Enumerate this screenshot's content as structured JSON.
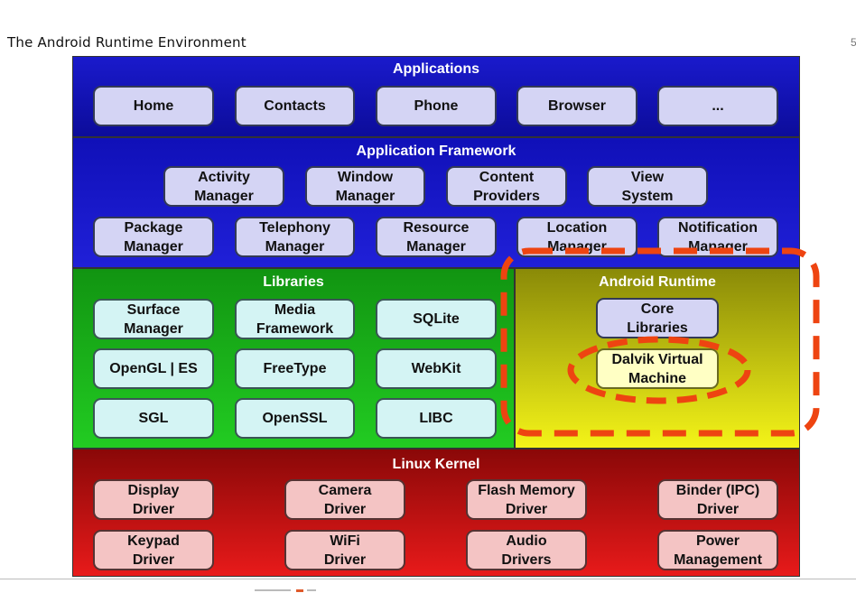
{
  "slide_title": "The Android Runtime Environment",
  "page_number": "5",
  "layers": {
    "applications": {
      "title": "Applications",
      "items": [
        "Home",
        "Contacts",
        "Phone",
        "Browser",
        "..."
      ]
    },
    "framework": {
      "title": "Application Framework",
      "row1": [
        "Activity\nManager",
        "Window\nManager",
        "Content\nProviders",
        "View\nSystem"
      ],
      "row2": [
        "Package\nManager",
        "Telephony\nManager",
        "Resource\nManager",
        "Location\nManager",
        "Notification\nManager"
      ]
    },
    "libraries": {
      "title": "Libraries",
      "items": [
        "Surface\nManager",
        "Media\nFramework",
        "SQLite",
        "OpenGL | ES",
        "FreeType",
        "WebKit",
        "SGL",
        "OpenSSL",
        "LIBC"
      ]
    },
    "runtime": {
      "title": "Android Runtime",
      "core": "Core\nLibraries",
      "dalvik": "Dalvik Virtual\nMachine"
    },
    "kernel": {
      "title": "Linux Kernel",
      "row1": [
        "Display\nDriver",
        "Camera\nDriver",
        "Flash Memory\nDriver",
        "Binder (IPC)\nDriver"
      ],
      "row2": [
        "Keypad\nDriver",
        "WiFi\nDriver",
        "Audio\nDrivers",
        "Power\nManagement"
      ]
    }
  },
  "colors": {
    "highlight_dash": "#ee4411"
  }
}
